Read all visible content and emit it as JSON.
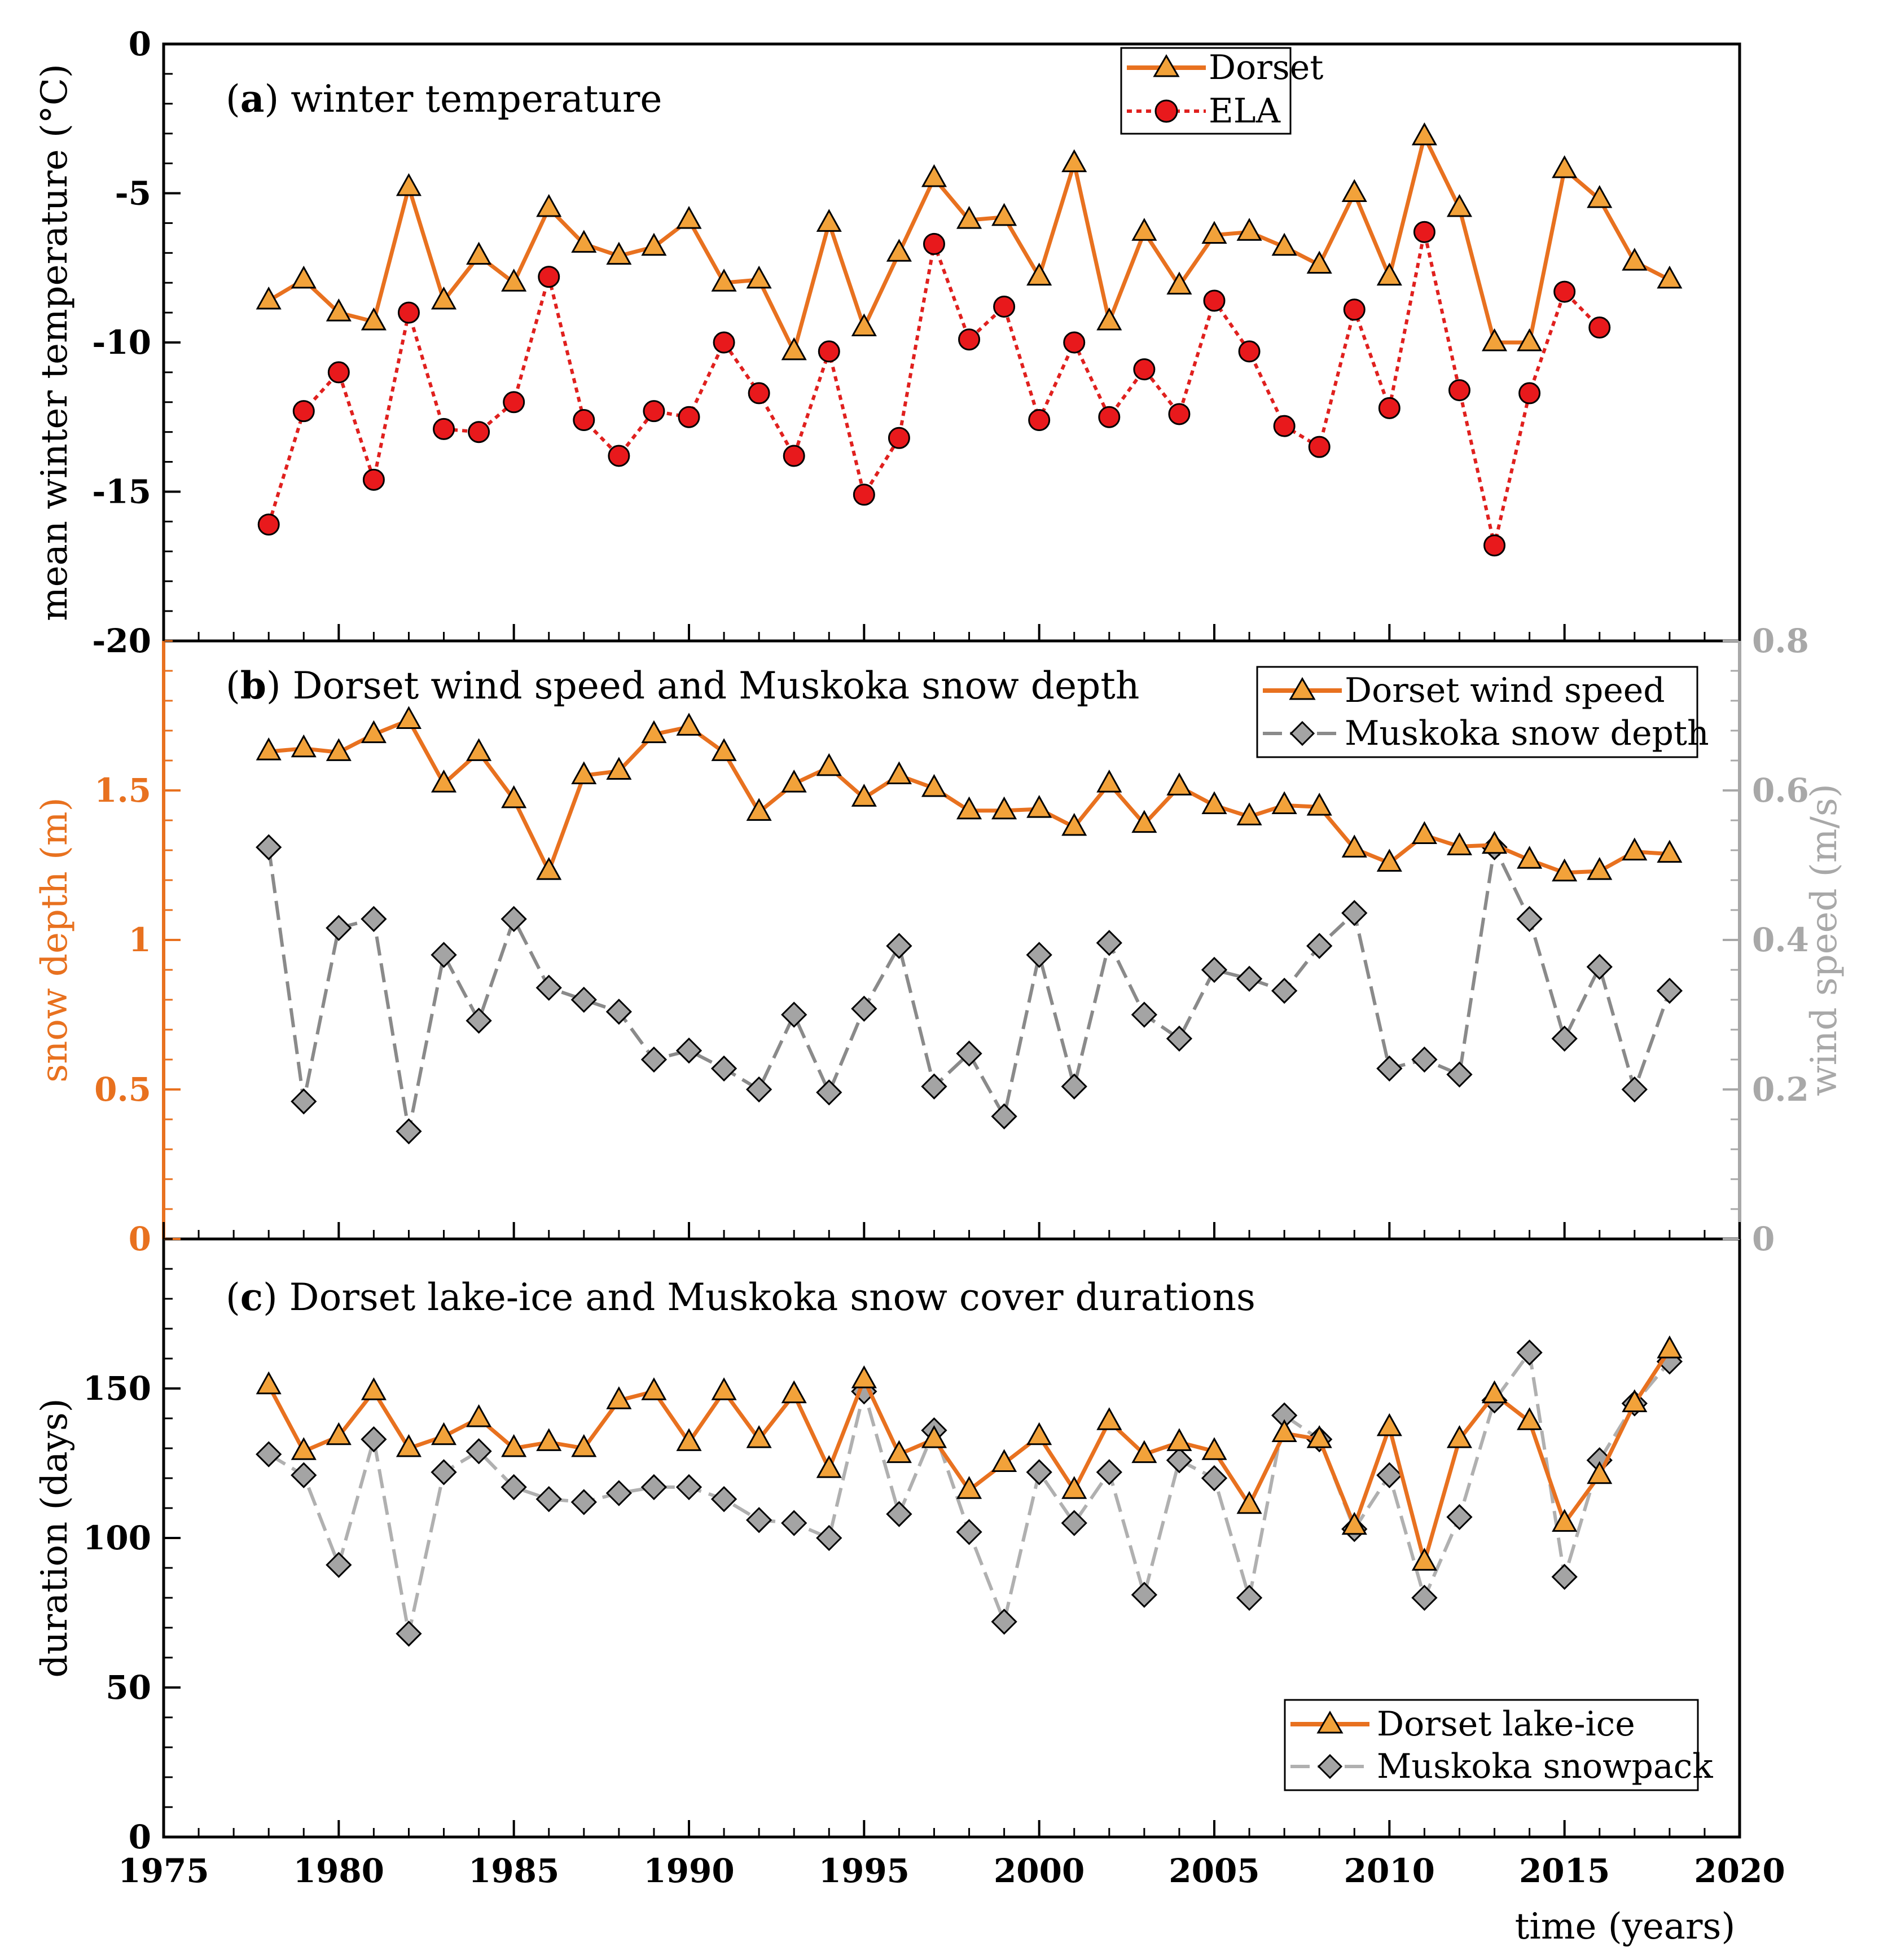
{
  "colors": {
    "orange": "#e8711f",
    "red_line": "#e0201e",
    "red_fill": "#e8191c",
    "gray_dark": "#8a8a8a",
    "gray_light": "#b0b0b0",
    "right_axis": "#a8a8a8"
  },
  "chart_data": [
    {
      "type": "line",
      "panel_label": "a",
      "title": "winter temperature",
      "xlabel": "time (years)",
      "ylabel": "mean winter temperature (°C)",
      "xlim": [
        1975,
        2020
      ],
      "ylim": [
        -20,
        0
      ],
      "y_ticks": [
        "0",
        "-5",
        "-10",
        "-15",
        "-20"
      ],
      "legend_position": "top-center",
      "series": [
        {
          "name": "Dorset",
          "marker": "triangle",
          "x": [
            1978,
            1979,
            1980,
            1981,
            1982,
            1983,
            1984,
            1985,
            1986,
            1987,
            1988,
            1989,
            1990,
            1991,
            1992,
            1993,
            1994,
            1995,
            1996,
            1997,
            1998,
            1999,
            2000,
            2001,
            2002,
            2003,
            2004,
            2005,
            2006,
            2007,
            2008,
            2009,
            2010,
            2011,
            2012,
            2013,
            2014,
            2015,
            2016,
            2017,
            2018
          ],
          "y": [
            -8.6,
            -7.9,
            -9.0,
            -9.3,
            -4.8,
            -8.6,
            -7.1,
            -8.0,
            -5.5,
            -6.7,
            -7.1,
            -6.8,
            -5.9,
            -8.0,
            -7.9,
            -10.3,
            -6.0,
            -9.5,
            -7.0,
            -4.5,
            -5.9,
            -5.8,
            -7.8,
            -4.0,
            -9.3,
            -6.3,
            -8.1,
            -6.4,
            -6.3,
            -6.8,
            -7.4,
            -5.0,
            -7.8,
            -3.1,
            -5.5,
            -10.0,
            -10.0,
            -4.2,
            -5.2,
            -7.3,
            -7.9
          ]
        },
        {
          "name": "ELA",
          "marker": "circle",
          "x": [
            1978,
            1979,
            1980,
            1981,
            1982,
            1983,
            1984,
            1985,
            1986,
            1987,
            1988,
            1989,
            1990,
            1991,
            1992,
            1993,
            1994,
            1995,
            1996,
            1997,
            1998,
            1999,
            2000,
            2001,
            2002,
            2003,
            2004,
            2005,
            2006,
            2007,
            2008,
            2009,
            2010,
            2011,
            2012,
            2013,
            2014,
            2015,
            2016
          ],
          "y": [
            -16.1,
            -12.3,
            -11.0,
            -14.6,
            -9.0,
            -12.9,
            -13.0,
            -12.0,
            -7.8,
            -12.6,
            -13.8,
            -12.3,
            -12.5,
            -10.0,
            -11.7,
            -13.8,
            -10.3,
            -15.1,
            -13.2,
            -6.7,
            -9.9,
            -8.8,
            -12.6,
            -10.0,
            -12.5,
            -10.9,
            -12.4,
            -8.6,
            -10.3,
            -12.8,
            -13.5,
            -8.9,
            -12.2,
            -6.3,
            -11.6,
            -16.8,
            -11.7,
            -8.3,
            -9.5
          ]
        }
      ]
    },
    {
      "type": "line",
      "panel_label": "b",
      "title": "Dorset wind speed and Muskoka snow depth",
      "xlabel": "time (years)",
      "ylabel": "snow depth (m)",
      "ylabel_right": "wind speed (m/s)",
      "xlim": [
        1975,
        2020
      ],
      "ylim": [
        0,
        2
      ],
      "ylim_right": [
        0,
        0.8
      ],
      "y_ticks": [
        "0",
        "0.5",
        "1",
        "1.5"
      ],
      "y_ticks_right": [
        "0",
        "0.2",
        "0.4",
        "0.6",
        "0.8"
      ],
      "legend_position": "top-right",
      "series": [
        {
          "name": "Dorset wind speed",
          "axis": "right",
          "marker": "triangle",
          "x": [
            1978,
            1979,
            1980,
            1981,
            1982,
            1983,
            1984,
            1985,
            1986,
            1987,
            1988,
            1989,
            1990,
            1991,
            1992,
            1993,
            1994,
            1995,
            1996,
            1997,
            1998,
            1999,
            2000,
            2001,
            2002,
            2003,
            2004,
            2005,
            2006,
            2007,
            2008,
            2009,
            2010,
            2011,
            2012,
            2013,
            2014,
            2015,
            2016,
            2017,
            2018
          ],
          "y": [
            0.652,
            0.656,
            0.651,
            0.675,
            0.694,
            0.609,
            0.651,
            0.588,
            0.492,
            0.62,
            0.626,
            0.675,
            0.685,
            0.651,
            0.571,
            0.609,
            0.631,
            0.59,
            0.62,
            0.603,
            0.573,
            0.573,
            0.575,
            0.551,
            0.609,
            0.555,
            0.605,
            0.58,
            0.565,
            0.58,
            0.578,
            0.522,
            0.503,
            0.54,
            0.525,
            0.527,
            0.507,
            0.49,
            0.492,
            0.518,
            0.515
          ]
        },
        {
          "name": "Muskoka snow depth",
          "axis": "left",
          "marker": "diamond",
          "x": [
            1978,
            1979,
            1980,
            1981,
            1982,
            1983,
            1984,
            1985,
            1986,
            1987,
            1988,
            1989,
            1990,
            1991,
            1992,
            1993,
            1994,
            1995,
            1996,
            1997,
            1998,
            1999,
            2000,
            2001,
            2002,
            2003,
            2004,
            2005,
            2006,
            2007,
            2008,
            2009,
            2010,
            2011,
            2012,
            2013,
            2014,
            2015,
            2016,
            2017,
            2018
          ],
          "y": [
            1.31,
            0.46,
            1.04,
            1.07,
            0.36,
            0.95,
            0.73,
            1.07,
            0.84,
            0.8,
            0.76,
            0.6,
            0.63,
            0.57,
            0.5,
            0.75,
            0.49,
            0.77,
            0.98,
            0.51,
            0.62,
            0.41,
            0.95,
            0.51,
            0.99,
            0.75,
            0.67,
            0.9,
            0.87,
            0.83,
            0.98,
            1.09,
            0.57,
            0.6,
            0.55,
            1.31,
            1.07,
            0.67,
            0.91,
            0.5,
            0.83
          ]
        }
      ]
    },
    {
      "type": "line",
      "panel_label": "c",
      "title": "Dorset lake-ice and Muskoka snow cover durations",
      "xlabel": "time (years)",
      "ylabel": "duration (days)",
      "xlim": [
        1975,
        2020
      ],
      "ylim": [
        0,
        200
      ],
      "x_ticks": [
        "1975",
        "1980",
        "1985",
        "1990",
        "1995",
        "2000",
        "2005",
        "2010",
        "2015",
        "2020"
      ],
      "y_ticks": [
        "0",
        "50",
        "100",
        "150"
      ],
      "legend_position": "bottom-right",
      "series": [
        {
          "name": "Dorset lake-ice",
          "marker": "triangle",
          "x": [
            1978,
            1979,
            1980,
            1981,
            1982,
            1983,
            1984,
            1985,
            1986,
            1987,
            1988,
            1989,
            1990,
            1991,
            1992,
            1993,
            1994,
            1995,
            1996,
            1997,
            1998,
            1999,
            2000,
            2001,
            2002,
            2003,
            2004,
            2005,
            2006,
            2007,
            2008,
            2009,
            2010,
            2011,
            2012,
            2013,
            2014,
            2015,
            2016,
            2017,
            2018
          ],
          "y": [
            151,
            129,
            134,
            149,
            130,
            134,
            140,
            130,
            132,
            130,
            146,
            149,
            132,
            149,
            133,
            148,
            123,
            153,
            128,
            133,
            116,
            125,
            134,
            116,
            139,
            128,
            132,
            129,
            111,
            135,
            133,
            104,
            137,
            92,
            133,
            148,
            139,
            105,
            121,
            145,
            163
          ]
        },
        {
          "name": "Muskoka snowpack",
          "marker": "diamond",
          "x": [
            1978,
            1979,
            1980,
            1981,
            1982,
            1983,
            1984,
            1985,
            1986,
            1987,
            1988,
            1989,
            1990,
            1991,
            1992,
            1993,
            1994,
            1995,
            1996,
            1997,
            1998,
            1999,
            2000,
            2001,
            2002,
            2003,
            2004,
            2005,
            2006,
            2007,
            2008,
            2009,
            2010,
            2011,
            2012,
            2013,
            2014,
            2015,
            2016,
            2017,
            2018
          ],
          "y": [
            128,
            121,
            91,
            133,
            68,
            122,
            129,
            117,
            113,
            112,
            115,
            117,
            117,
            113,
            106,
            105,
            100,
            149,
            108,
            136,
            102,
            72,
            122,
            105,
            122,
            81,
            126,
            120,
            80,
            141,
            133,
            103,
            121,
            80,
            107,
            146,
            162,
            87,
            126,
            145,
            159
          ]
        }
      ]
    }
  ],
  "ui": {
    "panel_a_label": "a",
    "panel_a_title": " winter temperature",
    "panel_a_ylabel": "mean winter temperature (°C)",
    "panel_b_label": "b",
    "panel_b_title": " Dorset wind speed and Muskoka snow depth",
    "panel_b_ylabel_left": "snow depth (m)",
    "panel_b_ylabel_right": "wind speed (m/s)",
    "panel_c_label": "c",
    "panel_c_title": " Dorset lake-ice and Muskoka snow cover durations",
    "panel_c_ylabel": "duration (days)",
    "xlabel": "time (years)",
    "legend_a": [
      "Dorset",
      "ELA"
    ],
    "legend_b": [
      "Dorset wind speed",
      "Muskoka snow depth"
    ],
    "legend_c": [
      "Dorset lake-ice",
      "Muskoka snowpack"
    ]
  }
}
